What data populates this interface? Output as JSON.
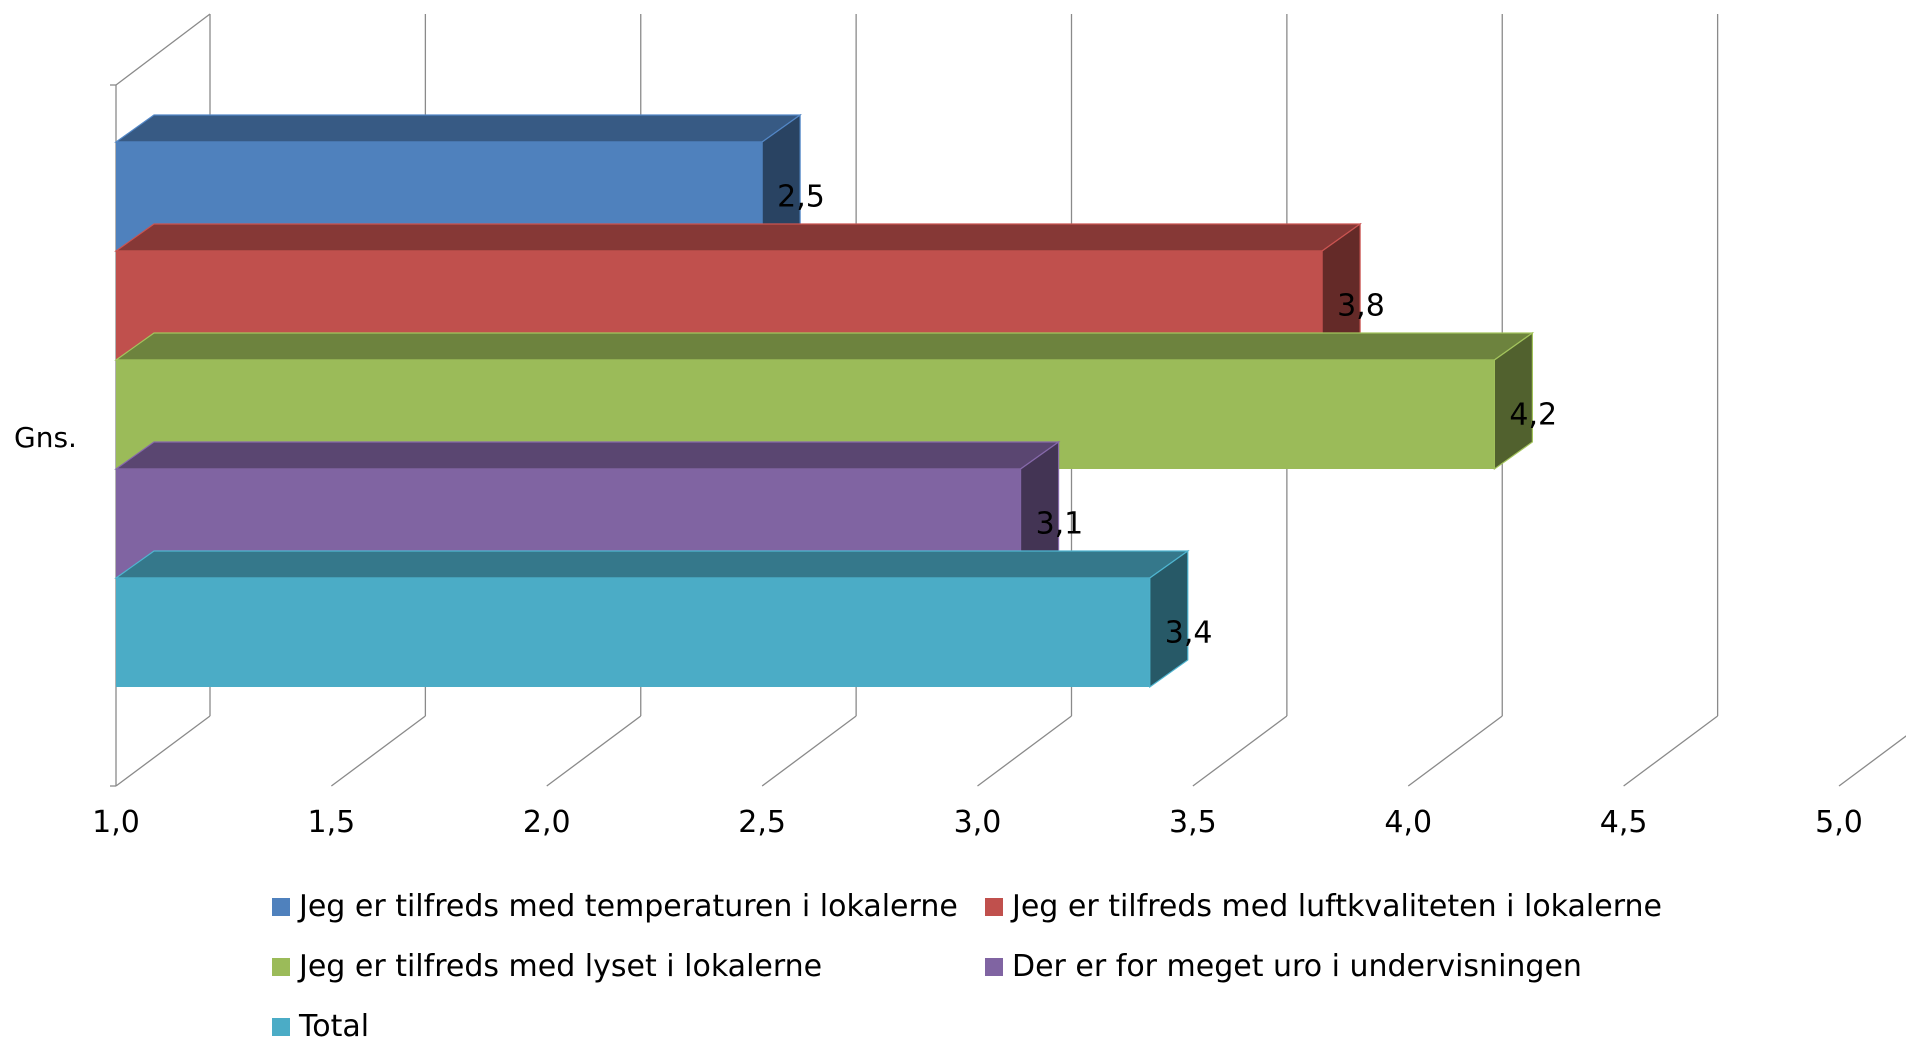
{
  "chart_data": {
    "type": "bar",
    "orientation": "horizontal",
    "three_d": true,
    "categories": [
      "Gns."
    ],
    "series": [
      {
        "name": "Jeg er tilfreds med temperaturen i lokalerne",
        "values": [
          2.5
        ],
        "label": "2,5",
        "color": "#4F81BD"
      },
      {
        "name": "Jeg er tilfreds med luftkvaliteten i lokalerne",
        "values": [
          3.8
        ],
        "label": "3,8",
        "color": "#C0504D"
      },
      {
        "name": "Jeg er tilfreds med lyset i lokalerne",
        "values": [
          4.2
        ],
        "label": "4,2",
        "color": "#9BBB59"
      },
      {
        "name": "Der er for meget uro i undervisningen",
        "values": [
          3.1
        ],
        "label": "3,1",
        "color": "#8064A2"
      },
      {
        "name": "Total",
        "values": [
          3.4
        ],
        "label": "3,4",
        "color": "#4BACC6"
      }
    ],
    "xlim": [
      1.0,
      5.0
    ],
    "x_ticks": [
      1.0,
      1.5,
      2.0,
      2.5,
      3.0,
      3.5,
      4.0,
      4.5,
      5.0
    ],
    "x_tick_labels": [
      "1,0",
      "1,5",
      "2,0",
      "2,5",
      "3,0",
      "3,5",
      "4,0",
      "4,5",
      "5,0"
    ],
    "grid": true,
    "legend_position": "bottom",
    "title": "",
    "xlabel": "",
    "ylabel": ""
  }
}
